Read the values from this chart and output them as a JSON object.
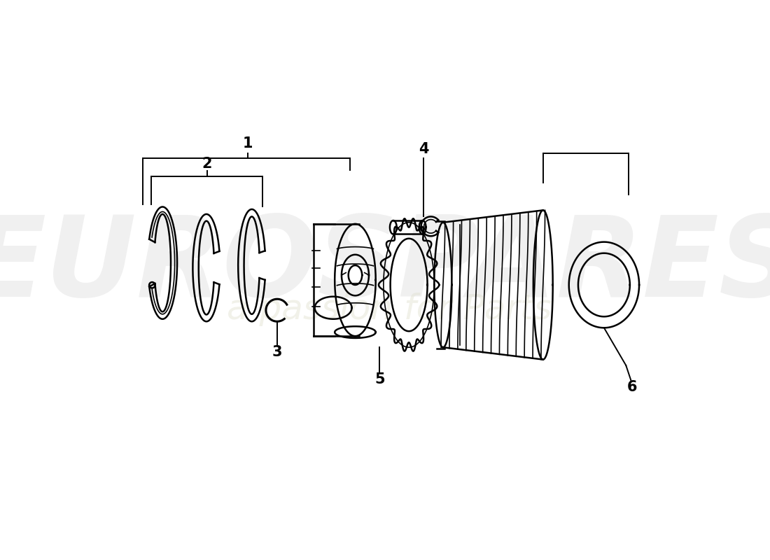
{
  "background_color": "#ffffff",
  "line_color": "#000000",
  "lw_main": 1.8,
  "lw_thin": 1.2,
  "lw_thick": 2.2,
  "figsize": [
    11.0,
    8.0
  ],
  "dpi": 100,
  "watermark_text1": "EUROSPARES",
  "watermark_text2": "a passion for Parts",
  "parts_labels": [
    "1",
    "2",
    "3",
    "4",
    "5",
    "6"
  ]
}
